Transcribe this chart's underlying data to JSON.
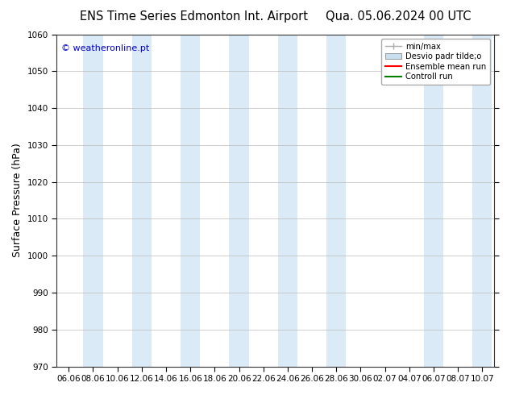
{
  "title_left": "ENS Time Series Edmonton Int. Airport",
  "title_right": "Qua. 05.06.2024 00 UTC",
  "ylabel": "Surface Pressure (hPa)",
  "ylim": [
    970,
    1060
  ],
  "yticks": [
    970,
    980,
    990,
    1000,
    1010,
    1020,
    1030,
    1040,
    1050,
    1060
  ],
  "xtick_labels": [
    "06.06",
    "08.06",
    "10.06",
    "12.06",
    "14.06",
    "16.06",
    "18.06",
    "20.06",
    "22.06",
    "24.06",
    "26.06",
    "28.06",
    "30.06",
    "02.07",
    "04.07",
    "06.07",
    "08.07",
    "10.07"
  ],
  "watermark": "© weatheronline.pt",
  "watermark_color": "#0000cc",
  "bg_color": "#ffffff",
  "plot_bg_color": "#ffffff",
  "band_color": "#daeaf6",
  "legend_entries": [
    "min/max",
    "Desvio padr tilde;o",
    "Ensemble mean run",
    "Controll run"
  ],
  "legend_colors": [
    "#aaaaaa",
    "#c8dff0",
    "#ff0000",
    "#008000"
  ],
  "title_fontsize": 10.5,
  "tick_fontsize": 7.5,
  "label_fontsize": 9
}
